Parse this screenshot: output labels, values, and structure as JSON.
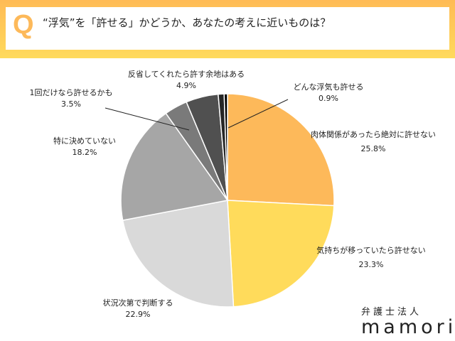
{
  "header": {
    "q": "Q",
    "title": "“浮気”を「許せる」かどうか、あなたの考えに近いものは？"
  },
  "logo": {
    "jp": "弁護士法人",
    "en": "mamori"
  },
  "chart_data": {
    "type": "pie",
    "title": "“浮気”を「許せる」かどうか、あなたの考えに近いものは？",
    "start": "12 o'clock, clockwise",
    "slices": [
      {
        "label": "肉体関係があったら絶対に許せない",
        "value": 25.8,
        "pct": "25.8%",
        "color": "#FDB95A"
      },
      {
        "label": "気持ちが移っていたら許せない",
        "value": 23.3,
        "pct": "23.3%",
        "color": "#FFDB5B"
      },
      {
        "label": "状況次第で判断する",
        "value": 22.9,
        "pct": "22.9%",
        "color": "#D9D9D9"
      },
      {
        "label": "特に決めていない",
        "value": 18.2,
        "pct": "18.2%",
        "color": "#A6A6A6"
      },
      {
        "label": "1回だけなら許せるかも",
        "value": 3.5,
        "pct": "3.5%",
        "color": "#7A7A7A"
      },
      {
        "label": "反省してくれたら許す余地はある",
        "value": 4.9,
        "pct": "4.9%",
        "color": "#505050"
      },
      {
        "label": "どんな浮気も許せる",
        "value": 0.9,
        "pct": "0.9%",
        "color": "#262626"
      },
      {
        "value": 0.5,
        "color": "#000000"
      }
    ]
  }
}
